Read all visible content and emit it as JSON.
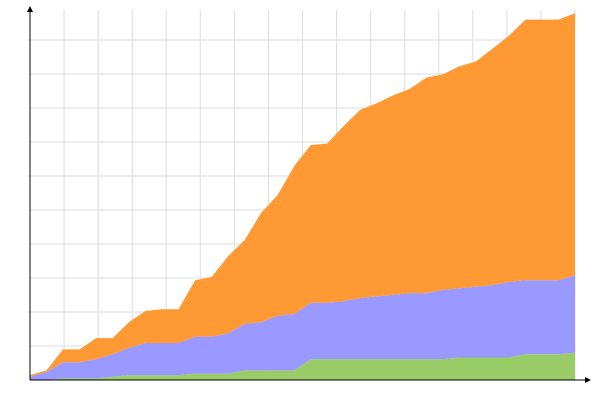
{
  "chart_data": {
    "type": "area",
    "stacked": true,
    "x": [
      0,
      1,
      2,
      3,
      4,
      5,
      6,
      7,
      8,
      9,
      10,
      11,
      12,
      13,
      14,
      15,
      16,
      17,
      18,
      19,
      20,
      21,
      22,
      23,
      24,
      25,
      26,
      27,
      28,
      29,
      30,
      31,
      32,
      33
    ],
    "series": [
      {
        "color": "#99cc66",
        "values": [
          0,
          0,
          1,
          1,
          1,
          2,
          3,
          3,
          3,
          3,
          4,
          4,
          4,
          6,
          6,
          6,
          6,
          13,
          13,
          13,
          13,
          13,
          13,
          13,
          13,
          13,
          14,
          14,
          14,
          14,
          16,
          16,
          16,
          17
        ]
      },
      {
        "color": "#9999ff",
        "values": [
          2,
          5,
          10,
          10,
          12,
          14,
          17,
          20,
          20,
          20,
          23,
          23,
          25,
          29,
          30,
          34,
          35,
          35,
          35,
          36,
          38,
          39,
          40,
          41,
          41,
          43,
          43,
          44,
          45,
          47,
          46,
          46,
          46,
          48
        ]
      },
      {
        "color": "#ff9933",
        "values": [
          1,
          1,
          8,
          8,
          13,
          10,
          16,
          20,
          21,
          21,
          35,
          37,
          48,
          52,
          68,
          75,
          92,
          98,
          99,
          109,
          117,
          120,
          124,
          127,
          134,
          134,
          138,
          140,
          147,
          153,
          162,
          162,
          162,
          163
        ]
      }
    ],
    "xlim": [
      0,
      33
    ],
    "ylim": [
      0,
      230
    ],
    "grid": true,
    "legend": false,
    "axis_color": "#000000",
    "grid_color": "#dddddd"
  }
}
